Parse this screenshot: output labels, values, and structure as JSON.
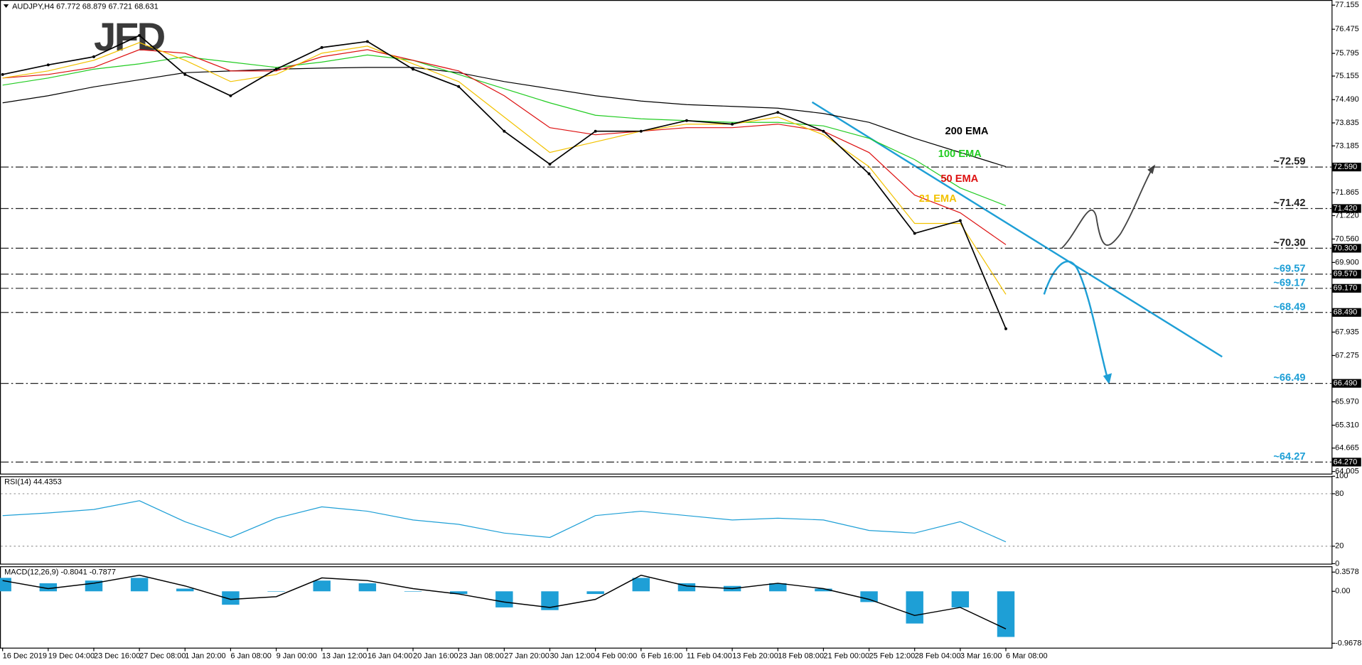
{
  "chart_data": {
    "type": "line",
    "title": "AUDJPY,H4 67.772 68.879 67.721 68.631",
    "logo": "JFD",
    "categories": [
      "16 Dec 2019",
      "19 Dec 04:00",
      "23 Dec 16:00",
      "27 Dec 08:00",
      "1 Jan 20:00",
      "6 Jan 08:00",
      "9 Jan 00:00",
      "13 Jan 12:00",
      "16 Jan 04:00",
      "20 Jan 16:00",
      "23 Jan 08:00",
      "27 Jan 20:00",
      "30 Jan 12:00",
      "4 Feb 00:00",
      "6 Feb 16:00",
      "11 Feb 04:00",
      "13 Feb 20:00",
      "18 Feb 08:00",
      "21 Feb 00:00",
      "25 Feb 12:00",
      "28 Feb 04:00",
      "3 Mar 16:00",
      "6 Mar 08:00"
    ],
    "values": [
      75.2,
      75.47,
      75.7,
      76.3,
      75.2,
      74.6,
      75.35,
      75.96,
      76.13,
      75.35,
      74.86,
      73.6,
      72.67,
      73.6,
      73.6,
      73.9,
      73.8,
      74.13,
      73.6,
      72.4,
      70.72,
      71.08,
      68.03
    ],
    "color": "#000000",
    "series": [
      {
        "name": "200 EMA",
        "color": "#000000",
        "values": [
          74.4,
          74.6,
          74.85,
          75.05,
          75.25,
          75.3,
          75.35,
          75.38,
          75.4,
          75.4,
          75.25,
          75.0,
          74.8,
          74.6,
          74.45,
          74.35,
          74.3,
          74.25,
          74.1,
          73.85,
          73.4,
          73.0,
          72.6
        ]
      },
      {
        "name": "100 EMA",
        "color": "#22cc22",
        "values": [
          74.9,
          75.1,
          75.35,
          75.5,
          75.7,
          75.55,
          75.4,
          75.55,
          75.75,
          75.6,
          75.2,
          74.8,
          74.4,
          74.05,
          73.95,
          73.9,
          73.85,
          73.85,
          73.75,
          73.4,
          72.8,
          72.0,
          71.5
        ]
      },
      {
        "name": "50 EMA",
        "color": "#dd1111",
        "values": [
          75.1,
          75.2,
          75.4,
          75.9,
          75.8,
          75.3,
          75.3,
          75.7,
          75.9,
          75.6,
          75.3,
          74.6,
          73.7,
          73.5,
          73.6,
          73.7,
          73.7,
          73.8,
          73.6,
          73.0,
          71.8,
          71.3,
          70.4
        ]
      },
      {
        "name": "21 EMA",
        "color": "#f2c200",
        "values": [
          75.1,
          75.3,
          75.6,
          76.1,
          75.6,
          75.0,
          75.2,
          75.8,
          76.0,
          75.5,
          75.0,
          74.0,
          73.0,
          73.3,
          73.6,
          73.8,
          73.8,
          74.0,
          73.5,
          72.6,
          71.0,
          71.0,
          69.0
        ]
      }
    ],
    "ylim": [
      63.92,
      77.3
    ],
    "yticks": [
      77.155,
      76.475,
      75.795,
      75.155,
      {
        "value": 74.49,
        "label": "74.490"
      },
      73.835,
      73.185,
      71.865,
      {
        "value": 71.22,
        "label": "71.220"
      },
      {
        "value": 70.56,
        "label": "70.560"
      },
      {
        "value": 69.9,
        "label": "69.900"
      },
      67.935,
      67.275,
      {
        "value": 65.97,
        "label": "65.970"
      },
      {
        "value": 65.31,
        "label": "65.310"
      },
      64.665,
      64.005
    ],
    "levels": [
      {
        "value": 72.59,
        "label": "~72.59",
        "box": "72.590",
        "color": "#222222"
      },
      {
        "value": 71.42,
        "label": "~71.42",
        "box": "71.420",
        "color": "#222222"
      },
      {
        "value": 70.3,
        "label": "~70.30",
        "box": "70.300",
        "color": "#222222"
      },
      {
        "value": 69.57,
        "label": "~69.57",
        "box": "69.570",
        "color": "#1e9fd6"
      },
      {
        "value": 69.17,
        "label": "~69.17",
        "box": "69.170",
        "color": "#1e9fd6"
      },
      {
        "value": 68.49,
        "label": "~68.49",
        "box": "68.490",
        "color": "#1e9fd6"
      },
      {
        "value": 66.49,
        "label": "~66.49",
        "box": "66.490",
        "color": "#1e9fd6"
      },
      {
        "value": 64.27,
        "label": "~64.27",
        "box": "64.270",
        "color": "#1e9fd6"
      }
    ],
    "rsi": {
      "title": "RSI(14) 44.4353",
      "color": "#1e9fd6",
      "values": [
        55,
        58,
        62,
        72,
        48,
        30,
        52,
        65,
        60,
        50,
        45,
        35,
        30,
        55,
        60,
        55,
        50,
        52,
        50,
        38,
        35,
        48,
        25
      ],
      "ylim": [
        0,
        100
      ],
      "yticks": [
        100,
        80,
        20,
        0
      ]
    },
    "macd": {
      "title": "MACD(12,26,9) -0.8041 -0.7877",
      "histogram": {
        "color": "#1e9fd6",
        "values": [
          0.25,
          0.15,
          0.2,
          0.25,
          0.05,
          -0.25,
          0.0,
          0.2,
          0.15,
          0.0,
          -0.05,
          -0.3,
          -0.35,
          -0.05,
          0.25,
          0.15,
          0.1,
          0.15,
          0.05,
          -0.2,
          -0.6,
          -0.3,
          -0.85
        ]
      },
      "signal": {
        "color": "#000000",
        "values": [
          0.2,
          0.05,
          0.15,
          0.3,
          0.1,
          -0.15,
          -0.1,
          0.25,
          0.2,
          0.05,
          -0.05,
          -0.2,
          -0.3,
          -0.15,
          0.3,
          0.1,
          0.05,
          0.15,
          0.05,
          -0.15,
          -0.45,
          -0.3,
          -0.7
        ]
      },
      "ylim": [
        -1.05,
        0.45
      ],
      "yticks": [
        0.3578,
        {
          "value": 0,
          "label": "0.00"
        },
        -0.9678
      ]
    }
  }
}
